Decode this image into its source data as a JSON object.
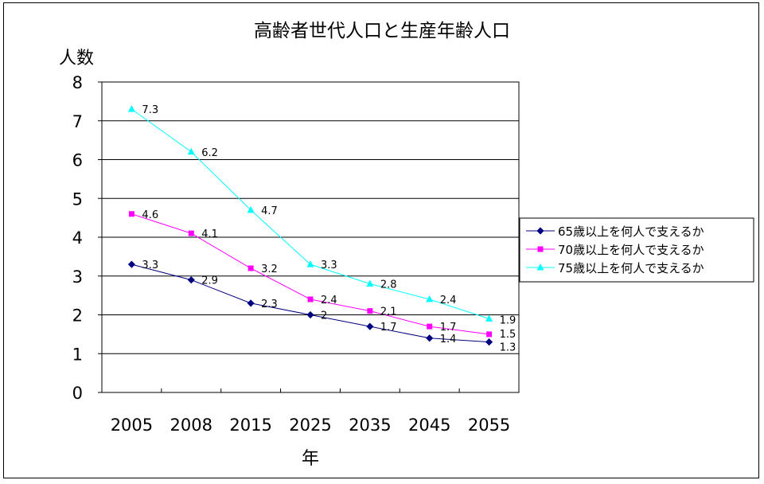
{
  "chart_data": {
    "type": "line",
    "title": "高齢者世代人口と生産年齢人口",
    "ylabel": "人数",
    "xlabel": "年",
    "categories": [
      "2005",
      "2008",
      "2015",
      "2025",
      "2035",
      "2045",
      "2055"
    ],
    "ylim": [
      0,
      8
    ],
    "yticks": [
      "0",
      "1",
      "2",
      "3",
      "4",
      "5",
      "6",
      "7",
      "8"
    ],
    "grid": "horizontal",
    "legend_position": "right",
    "series": [
      {
        "name": "65歳以上を何人で支えるか",
        "color": "#000080",
        "marker": "diamond",
        "values": [
          3.3,
          2.9,
          2.3,
          2,
          1.7,
          1.4,
          1.3
        ]
      },
      {
        "name": "70歳以上を何人で支えるか",
        "color": "#ff00ff",
        "marker": "square",
        "values": [
          4.6,
          4.1,
          3.2,
          2.4,
          2.1,
          1.7,
          1.5
        ]
      },
      {
        "name": "75歳以上を何人で支えるか",
        "color": "#00ffff",
        "marker": "triangle",
        "values": [
          7.3,
          6.2,
          4.7,
          3.3,
          2.8,
          2.4,
          1.9
        ]
      }
    ]
  }
}
